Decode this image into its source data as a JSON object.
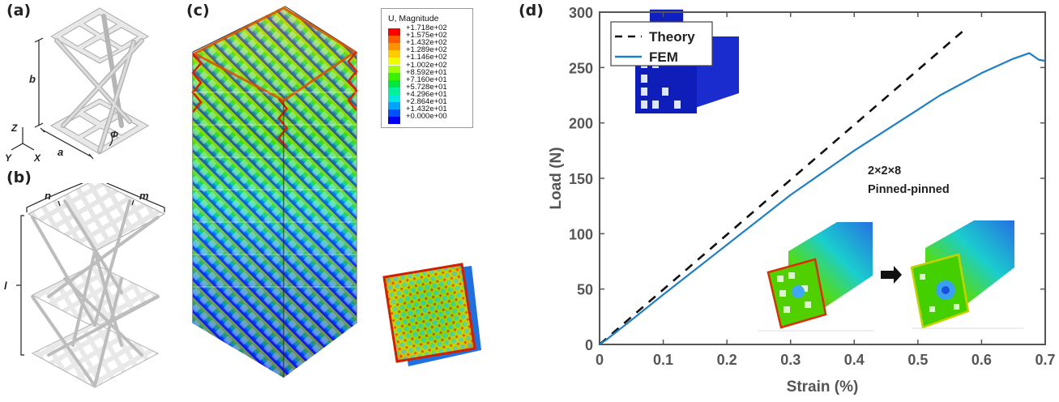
{
  "panels": {
    "a": {
      "label": "(a)",
      "dims": {
        "b": "b",
        "a": "a",
        "phi": "Φ"
      },
      "axes": {
        "z": "Z",
        "y": "Y",
        "x": "X"
      }
    },
    "b": {
      "label": "(b)",
      "dims": {
        "n": "n",
        "m": "m",
        "l": "l"
      }
    },
    "c": {
      "label": "(c)",
      "legend": {
        "title": "U, Magnitude",
        "entries": [
          {
            "value": "+1.718e+02",
            "color": "#ff0000"
          },
          {
            "value": "+1.575e+02",
            "color": "#ff5a00"
          },
          {
            "value": "+1.432e+02",
            "color": "#ff9400"
          },
          {
            "value": "+1.289e+02",
            "color": "#ffcc00"
          },
          {
            "value": "+1.146e+02",
            "color": "#ecff00"
          },
          {
            "value": "+1.002e+02",
            "color": "#a0ff00"
          },
          {
            "value": "+8.592e+01",
            "color": "#3cf000"
          },
          {
            "value": "+7.160e+01",
            "color": "#00e840"
          },
          {
            "value": "+5.728e+01",
            "color": "#00f09c"
          },
          {
            "value": "+4.296e+01",
            "color": "#00e6e0"
          },
          {
            "value": "+2.864e+01",
            "color": "#00a4ff"
          },
          {
            "value": "+1.432e+01",
            "color": "#0050ff"
          },
          {
            "value": "+0.000e+00",
            "color": "#0000f0"
          }
        ]
      }
    },
    "d": {
      "label": "(d)"
    }
  },
  "chart_data": {
    "type": "line",
    "xlabel": "Strain (%)",
    "ylabel": "Load (N)",
    "xlim": [
      0,
      0.7
    ],
    "ylim": [
      0,
      300
    ],
    "xticks": [
      "0",
      "0.1",
      "0.2",
      "0.3",
      "0.4",
      "0.5",
      "0.6",
      "0.7"
    ],
    "yticks": [
      "0",
      "50",
      "100",
      "150",
      "200",
      "250",
      "300"
    ],
    "legend_position": "top-left",
    "annotation": [
      "2×2×8",
      "Pinned-pinned"
    ],
    "series": [
      {
        "name": "Theory",
        "style": "dashed",
        "color": "#111111",
        "x": [
          0,
          0.575
        ],
        "y": [
          0,
          285
        ]
      },
      {
        "name": "FEM",
        "style": "solid",
        "color": "#1f7fc4",
        "x": [
          0,
          0.01,
          0.05,
          0.1,
          0.2,
          0.3,
          0.4,
          0.5,
          0.535,
          0.6,
          0.65,
          0.675,
          0.69,
          0.7
        ],
        "y": [
          0,
          4,
          22,
          45,
          90,
          135,
          175,
          212,
          225,
          245,
          258,
          263,
          257,
          256
        ]
      }
    ]
  }
}
